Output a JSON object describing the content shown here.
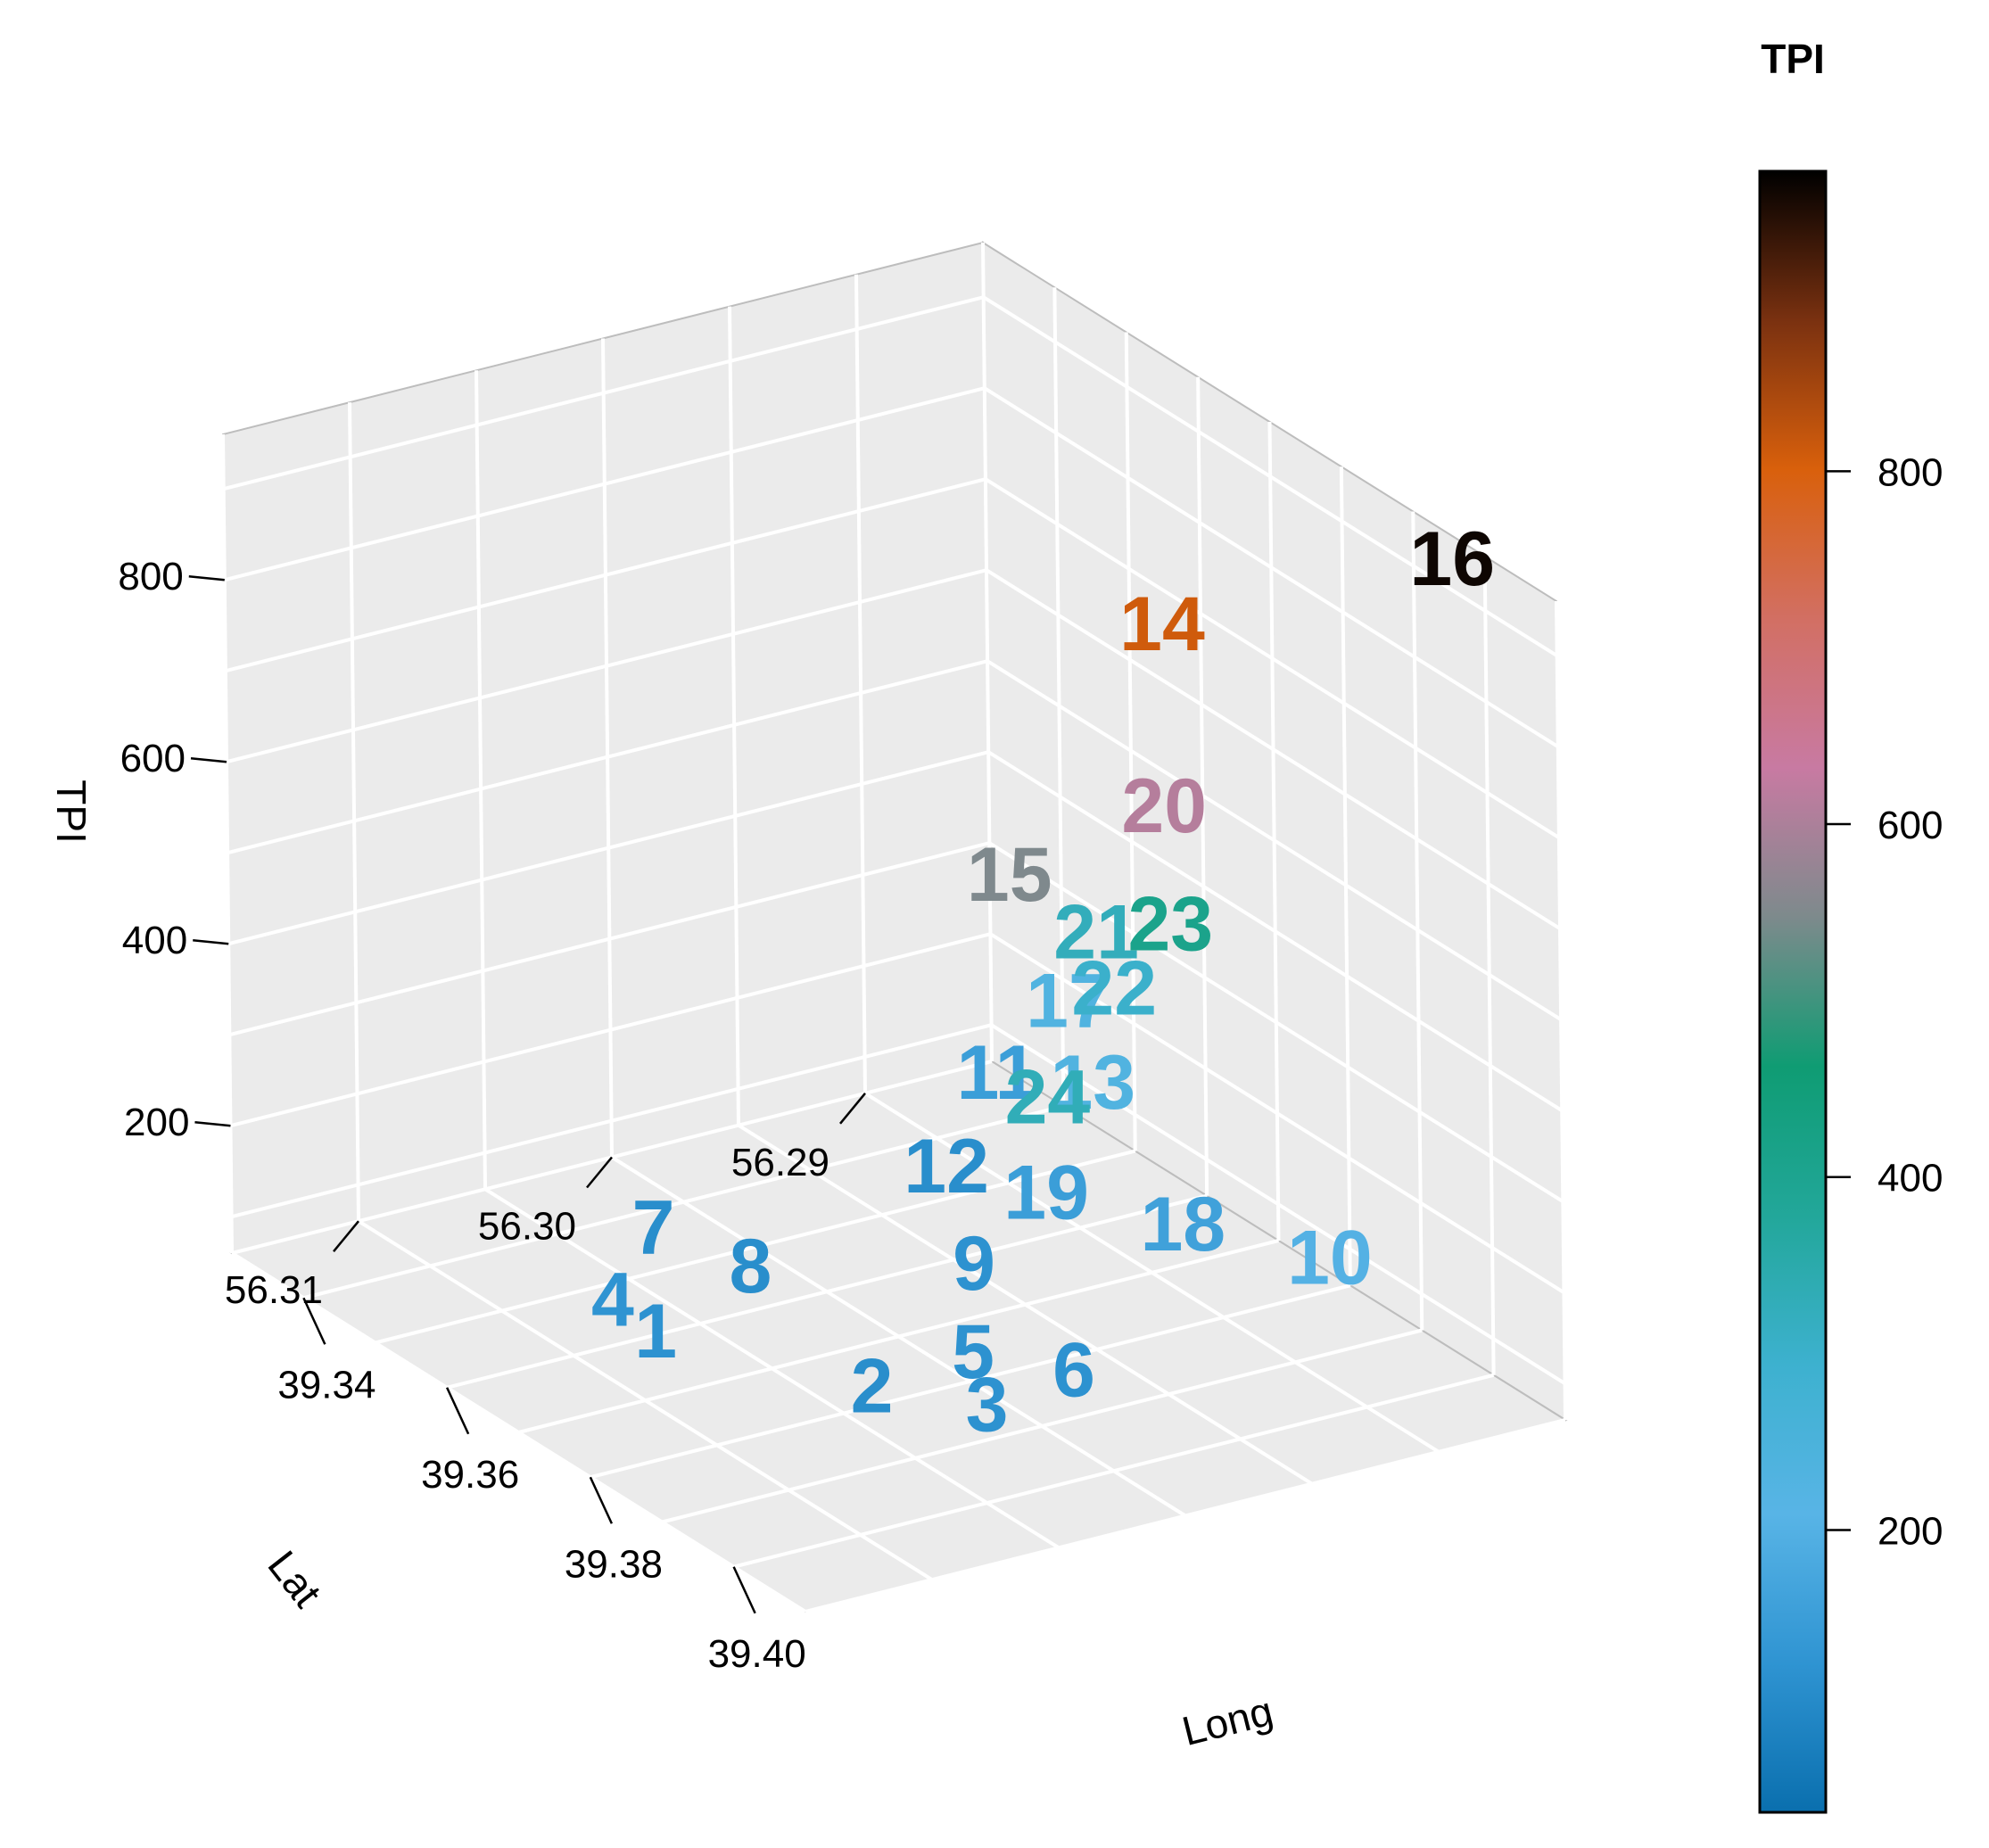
{
  "chart_data": {
    "type": "scatter3d",
    "title": "",
    "axes": {
      "x": {
        "label": "Long",
        "range": [
          39.33,
          39.41
        ],
        "ticks": [
          "39.34",
          "39.36",
          "39.38",
          "39.40"
        ],
        "tick_values": [
          39.34,
          39.36,
          39.38,
          39.4
        ]
      },
      "y": {
        "label": "Lat",
        "range": [
          56.285,
          56.315
        ],
        "ticks": [
          "56.29",
          "56.30",
          "56.31"
        ],
        "tick_values": [
          56.29,
          56.3,
          56.31
        ]
      },
      "z": {
        "label": "TPI",
        "range": [
          60,
          960
        ],
        "ticks": [
          "200",
          "400",
          "600",
          "800"
        ],
        "tick_values": [
          200,
          400,
          600,
          800
        ]
      }
    },
    "grid": true,
    "colorbar": {
      "title": "TPI",
      "range": [
        40,
        970
      ],
      "ticks": [
        "200",
        "400",
        "600",
        "800"
      ],
      "tick_values": [
        200,
        400,
        600,
        800
      ],
      "stops": [
        "#0a6fae",
        "#2f94d2",
        "#58b4e6",
        "#3db1cf",
        "#22a79a",
        "#0f9c73",
        "#7d8a8c",
        "#c87aa2",
        "#d26f63",
        "#d9600c",
        "#7a3110",
        "#000000"
      ]
    },
    "points": [
      {
        "label": "1",
        "x": 39.368,
        "y": 56.309,
        "z": 120
      },
      {
        "label": "2",
        "x": 39.384,
        "y": 56.305,
        "z": 110
      },
      {
        "label": "3",
        "x": 39.393,
        "y": 56.303,
        "z": 120
      },
      {
        "label": "4",
        "x": 39.362,
        "y": 56.309,
        "z": 125
      },
      {
        "label": "5",
        "x": 39.384,
        "y": 56.301,
        "z": 120
      },
      {
        "label": "6",
        "x": 39.391,
        "y": 56.299,
        "z": 120
      },
      {
        "label": "7",
        "x": 39.35,
        "y": 56.304,
        "z": 110
      },
      {
        "label": "8",
        "x": 39.36,
        "y": 56.303,
        "z": 110
      },
      {
        "label": "9",
        "x": 39.37,
        "y": 56.297,
        "z": 120
      },
      {
        "label": "10",
        "x": 39.395,
        "y": 56.29,
        "z": 200
      },
      {
        "label": "11",
        "x": 39.345,
        "y": 56.289,
        "z": 150
      },
      {
        "label": "12",
        "x": 39.352,
        "y": 56.293,
        "z": 110
      },
      {
        "label": "13",
        "x": 39.362,
        "y": 56.29,
        "z": 230
      },
      {
        "label": "14",
        "x": 39.376,
        "y": 56.291,
        "z": 810
      },
      {
        "label": "15",
        "x": 39.372,
        "y": 56.296,
        "z": 550
      },
      {
        "label": "16",
        "x": 39.399,
        "y": 56.286,
        "z": 960
      },
      {
        "label": "17",
        "x": 39.348,
        "y": 56.287,
        "z": 230
      },
      {
        "label": "18",
        "x": 39.378,
        "y": 56.291,
        "z": 160
      },
      {
        "label": "19",
        "x": 39.366,
        "y": 56.293,
        "z": 150
      },
      {
        "label": "20",
        "x": 39.376,
        "y": 56.291,
        "z": 610
      },
      {
        "label": "21",
        "x": 39.352,
        "y": 56.287,
        "z": 325
      },
      {
        "label": "22",
        "x": 39.358,
        "y": 56.288,
        "z": 300
      },
      {
        "label": "23",
        "x": 39.366,
        "y": 56.288,
        "z": 410
      },
      {
        "label": "24",
        "x": 39.377,
        "y": 56.296,
        "z": 330
      }
    ]
  }
}
